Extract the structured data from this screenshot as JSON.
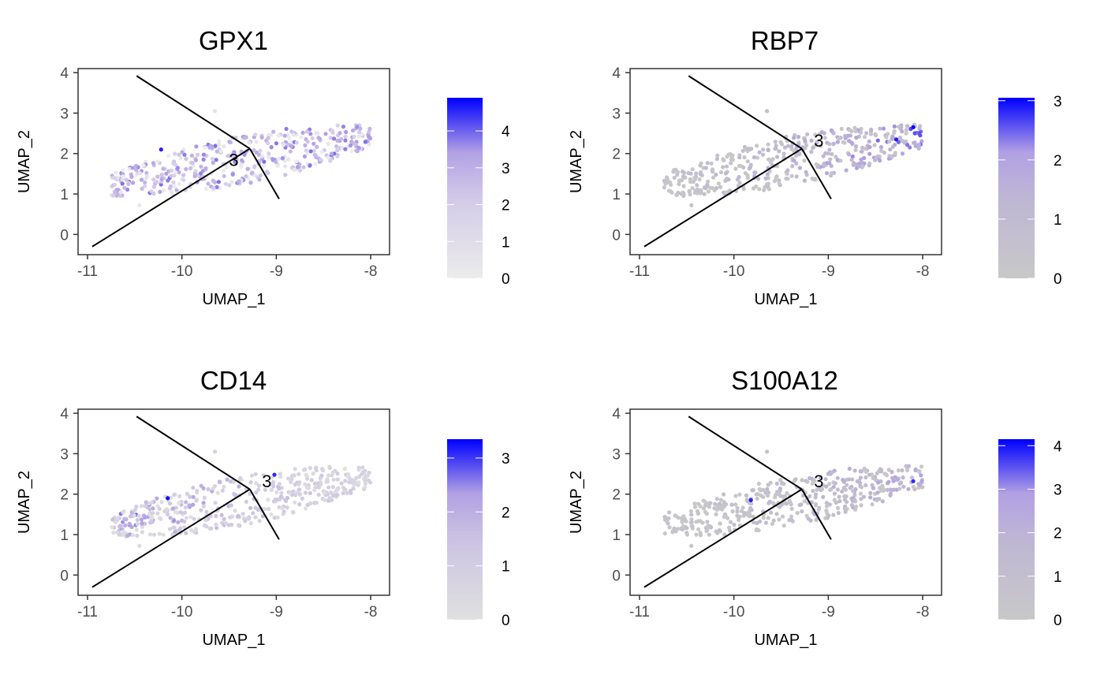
{
  "chart_data": [
    {
      "type": "scatter",
      "title": "GPX1",
      "xlabel": "UMAP_1",
      "ylabel": "UMAP_2",
      "xlim": [
        -11.1,
        -7.8
      ],
      "ylim": [
        -0.5,
        4.1
      ],
      "xticks": [
        -11,
        -10,
        -9,
        -8
      ],
      "yticks": [
        0,
        1,
        2,
        3,
        4
      ],
      "xtick_labels": [
        "-11",
        "-10",
        "-9",
        "-8"
      ],
      "ytick_labels": [
        "0",
        "1",
        "2",
        "3",
        "4"
      ],
      "grid": false,
      "legend_position": "right",
      "color_low": "#ececec",
      "color_high": "#0000ff",
      "colorbar_max": 4.9,
      "colorbar_ticks": [
        0,
        1,
        2,
        3,
        4
      ],
      "colorbar_tick_labels": [
        "0",
        "1",
        "2",
        "3",
        "4"
      ],
      "expression_style": "broad",
      "point_seed": 11,
      "highlight_points": [
        {
          "x": -10.22,
          "y": 2.1,
          "v": 4.6
        }
      ],
      "trajectory": [
        {
          "x": [
            -10.95,
            -9.28
          ],
          "y": [
            -0.3,
            2.12
          ]
        },
        {
          "x": [
            -10.48,
            -9.28
          ],
          "y": [
            3.92,
            2.12
          ]
        },
        {
          "x": [
            -9.28,
            -8.97
          ],
          "y": [
            2.12,
            0.88
          ]
        }
      ],
      "annotations": [
        {
          "text": "3",
          "x": -9.45,
          "y": 1.85
        }
      ]
    },
    {
      "type": "scatter",
      "title": "RBP7",
      "xlabel": "UMAP_1",
      "ylabel": "UMAP_2",
      "xlim": [
        -11.1,
        -7.8
      ],
      "ylim": [
        -0.5,
        4.1
      ],
      "xticks": [
        -11,
        -10,
        -9,
        -8
      ],
      "yticks": [
        0,
        1,
        2,
        3,
        4
      ],
      "xtick_labels": [
        "-11",
        "-10",
        "-9",
        "-8"
      ],
      "ytick_labels": [
        "0",
        "1",
        "2",
        "3",
        "4"
      ],
      "grid": false,
      "legend_position": "right",
      "color_low": "#c8c8c8",
      "color_high": "#0000ff",
      "colorbar_max": 3.05,
      "colorbar_ticks": [
        0,
        1,
        2,
        3
      ],
      "colorbar_tick_labels": [
        "0",
        "1",
        "2",
        "3"
      ],
      "expression_style": "right",
      "point_seed": 23,
      "highlight_points": [
        {
          "x": -8.1,
          "y": 2.65,
          "v": 3.0
        },
        {
          "x": -8.28,
          "y": 2.35,
          "v": 2.9
        }
      ],
      "trajectory": [
        {
          "x": [
            -10.95,
            -9.28
          ],
          "y": [
            -0.3,
            2.12
          ]
        },
        {
          "x": [
            -10.48,
            -9.28
          ],
          "y": [
            3.92,
            2.12
          ]
        },
        {
          "x": [
            -9.28,
            -8.97
          ],
          "y": [
            2.12,
            0.88
          ]
        }
      ],
      "annotations": [
        {
          "text": "3",
          "x": -9.1,
          "y": 2.33
        }
      ]
    },
    {
      "type": "scatter",
      "title": "CD14",
      "xlabel": "UMAP_1",
      "ylabel": "UMAP_2",
      "xlim": [
        -11.1,
        -7.8
      ],
      "ylim": [
        -0.5,
        4.1
      ],
      "xticks": [
        -11,
        -10,
        -9,
        -8
      ],
      "yticks": [
        0,
        1,
        2,
        3,
        4
      ],
      "xtick_labels": [
        "-11",
        "-10",
        "-9",
        "-8"
      ],
      "ytick_labels": [
        "0",
        "1",
        "2",
        "3",
        "4"
      ],
      "grid": false,
      "legend_position": "right",
      "color_low": "#e0e0e0",
      "color_high": "#0000ff",
      "colorbar_max": 3.35,
      "colorbar_ticks": [
        0,
        1,
        2,
        3
      ],
      "colorbar_tick_labels": [
        "0",
        "1",
        "2",
        "3"
      ],
      "expression_style": "left",
      "point_seed": 37,
      "highlight_points": [
        {
          "x": -10.15,
          "y": 1.9,
          "v": 3.3
        },
        {
          "x": -9.02,
          "y": 2.48,
          "v": 3.1
        }
      ],
      "trajectory": [
        {
          "x": [
            -10.95,
            -9.28
          ],
          "y": [
            -0.3,
            2.12
          ]
        },
        {
          "x": [
            -10.48,
            -9.28
          ],
          "y": [
            3.92,
            2.12
          ]
        },
        {
          "x": [
            -9.28,
            -8.97
          ],
          "y": [
            2.12,
            0.88
          ]
        }
      ],
      "annotations": [
        {
          "text": "3",
          "x": -9.1,
          "y": 2.33
        }
      ]
    },
    {
      "type": "scatter",
      "title": "S100A12",
      "xlabel": "UMAP_1",
      "ylabel": "UMAP_2",
      "xlim": [
        -11.1,
        -7.8
      ],
      "ylim": [
        -0.5,
        4.1
      ],
      "xticks": [
        -11,
        -10,
        -9,
        -8
      ],
      "yticks": [
        0,
        1,
        2,
        3,
        4
      ],
      "xtick_labels": [
        "-11",
        "-10",
        "-9",
        "-8"
      ],
      "ytick_labels": [
        "0",
        "1",
        "2",
        "3",
        "4"
      ],
      "grid": false,
      "legend_position": "right",
      "color_low": "#c8c8c8",
      "color_high": "#0000ff",
      "colorbar_max": 4.15,
      "colorbar_ticks": [
        0,
        1,
        2,
        3,
        4
      ],
      "colorbar_tick_labels": [
        "0",
        "1",
        "2",
        "3",
        "4"
      ],
      "expression_style": "right",
      "point_seed": 53,
      "highlight_points": [
        {
          "x": -9.82,
          "y": 1.85,
          "v": 3.9
        },
        {
          "x": -8.1,
          "y": 2.32,
          "v": 3.8
        }
      ],
      "trajectory": [
        {
          "x": [
            -10.95,
            -9.28
          ],
          "y": [
            -0.3,
            2.12
          ]
        },
        {
          "x": [
            -10.48,
            -9.28
          ],
          "y": [
            3.92,
            2.12
          ]
        },
        {
          "x": [
            -9.28,
            -8.97
          ],
          "y": [
            2.12,
            0.88
          ]
        }
      ],
      "annotations": [
        {
          "text": "3",
          "x": -9.1,
          "y": 2.33
        }
      ]
    }
  ]
}
